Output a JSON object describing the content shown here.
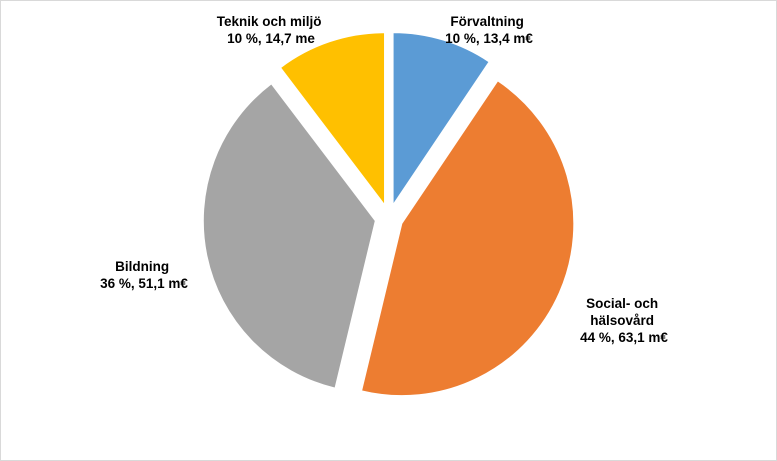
{
  "chart_data": {
    "type": "pie",
    "exploded": true,
    "slices": [
      {
        "name": "Förvaltning",
        "percent_label": "10 %, 13,4 m€",
        "value": 13.4,
        "color": "#5b9bd5"
      },
      {
        "name": "Social- och hälsovård",
        "percent_label": "44 %, 63,1 m€",
        "value": 63.1,
        "color": "#ed7d31"
      },
      {
        "name": "Bildning",
        "percent_label": "36 %, 51,1 m€",
        "value": 51.1,
        "color": "#a5a5a5"
      },
      {
        "name": "Teknik och miljö",
        "percent_label": "10 %, 14,7 me",
        "value": 14.7,
        "color": "#ffc000"
      }
    ],
    "label_lines": {
      "forvaltning": [
        "Förvaltning",
        "10 %, 13,4 m€"
      ],
      "social": [
        "Social- och",
        "hälsovård",
        "44 %, 63,1 m€"
      ],
      "bildning": [
        "Bildning",
        "36 %, 51,1 m€"
      ],
      "teknik": [
        "Teknik och miljö",
        "10 %, 14,7 me"
      ]
    }
  }
}
